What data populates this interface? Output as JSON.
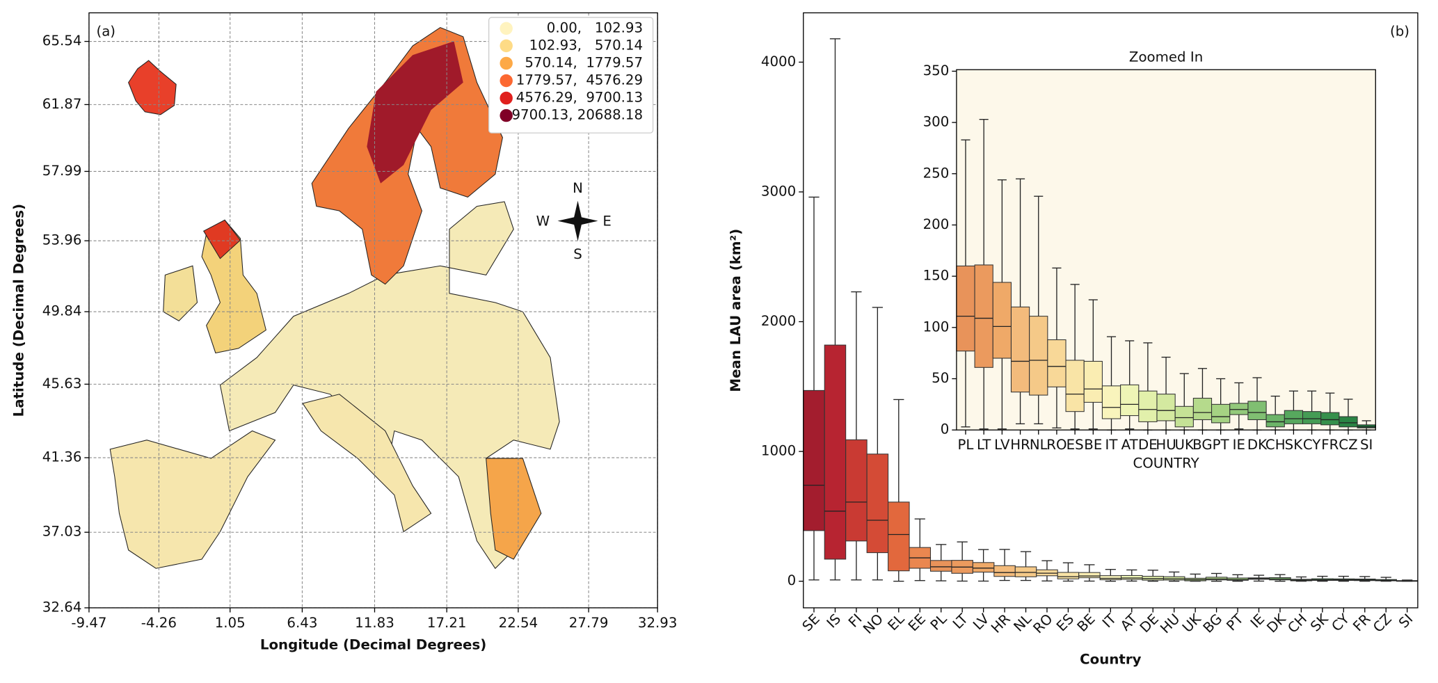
{
  "chart_data": [
    {
      "type": "map",
      "annotation": "(a)",
      "xlabel": "Longitude (Decimal Degrees)",
      "ylabel": "Latitude (Decimal Degrees)",
      "xlim": [
        -9.47,
        32.93
      ],
      "xticks": [
        -9.47,
        -4.26,
        1.05,
        6.43,
        11.83,
        17.21,
        22.54,
        27.79,
        32.93
      ],
      "ylim": [
        32.64,
        67.2
      ],
      "yticks": [
        32.64,
        37.03,
        41.36,
        45.63,
        49.84,
        53.96,
        57.99,
        61.87,
        65.54
      ],
      "grid": true,
      "legend_position": "upper right",
      "legend": {
        "labels": [
          "0.00,   102.93",
          "102.93,   570.14",
          "570.14,  1779.57",
          "1779.57,  4576.29",
          "4576.29,  9700.13",
          "9700.13, 20688.18"
        ],
        "colors": [
          "#fff3bf",
          "#fedb86",
          "#fda946",
          "#fc6831",
          "#e0201d",
          "#800026"
        ]
      },
      "compass": {
        "north": "N",
        "south": "S",
        "west": "W",
        "east": "E"
      }
    },
    {
      "type": "box",
      "annotation": "(b)",
      "xlabel": "Country",
      "ylabel": "Mean LAU area (km²)",
      "categories": [
        "SE",
        "IS",
        "FI",
        "NO",
        "EL",
        "EE",
        "PL",
        "LT",
        "LV",
        "HR",
        "NL",
        "RO",
        "ES",
        "BE",
        "IT",
        "AT",
        "DE",
        "HU",
        "UK",
        "BG",
        "PT",
        "IE",
        "DK",
        "CH",
        "SK",
        "CY",
        "FR",
        "CZ",
        "SI"
      ],
      "colors": [
        "#a31d2e",
        "#b72431",
        "#c93a33",
        "#d44b36",
        "#e2683d",
        "#ea8750",
        "#e8935a",
        "#eb9a5e",
        "#efa968",
        "#f3bb7c",
        "#f5c988",
        "#f8d898",
        "#f9e4a6",
        "#faedb2",
        "#f9f4bc",
        "#eef5b6",
        "#e2f0ab",
        "#d4e9a0",
        "#c5e296",
        "#b5da8c",
        "#a5d283",
        "#93c97b",
        "#80bf72",
        "#6cb468",
        "#57a85e",
        "#459c55",
        "#36904c",
        "#2a8444",
        "#1d773c"
      ],
      "whisker_low": [
        10,
        10,
        10,
        10,
        0,
        5,
        3,
        1,
        1,
        6,
        6,
        2,
        1,
        1,
        0,
        1,
        0,
        0,
        0,
        0,
        0,
        1,
        0,
        0,
        0,
        0,
        0,
        0,
        0
      ],
      "q1": [
        390,
        170,
        310,
        220,
        80,
        100,
        77,
        61,
        70,
        37,
        34,
        42,
        18,
        27,
        11,
        14,
        8,
        9,
        3,
        10,
        7,
        15,
        10,
        3,
        6,
        6,
        5,
        3,
        2
      ],
      "median": [
        740,
        540,
        610,
        470,
        360,
        180,
        111,
        109,
        101,
        67,
        68,
        62,
        35,
        40,
        22,
        25,
        20,
        19,
        12,
        17,
        13,
        20,
        17,
        8,
        11,
        11,
        10,
        7,
        3
      ],
      "q3": [
        1470,
        1820,
        1090,
        980,
        610,
        260,
        160,
        161,
        144,
        120,
        111,
        88,
        68,
        67,
        43,
        44,
        38,
        35,
        23,
        31,
        25,
        26,
        28,
        15,
        19,
        18,
        17,
        13,
        5
      ],
      "whisker_high": [
        2960,
        4180,
        2230,
        2110,
        1400,
        480,
        283,
        303,
        244,
        245,
        228,
        158,
        142,
        127,
        91,
        87,
        85,
        71,
        55,
        60,
        50,
        46,
        51,
        33,
        38,
        38,
        36,
        30,
        9
      ],
      "ylim": [
        -205,
        4380
      ],
      "yticks": [
        0,
        1000,
        2000,
        3000,
        4000
      ]
    },
    {
      "type": "box",
      "title": "Zoomed In",
      "xlabel": "COUNTRY",
      "background": "#fdf8ea",
      "categories": [
        "PL",
        "LT",
        "LV",
        "HR",
        "NL",
        "RO",
        "ES",
        "BE",
        "IT",
        "AT",
        "DE",
        "HU",
        "UK",
        "BG",
        "PT",
        "IE",
        "DK",
        "CH",
        "SK",
        "CY",
        "FR",
        "CZ",
        "SI"
      ],
      "colors": [
        "#e8935a",
        "#eb9a5e",
        "#efa968",
        "#f3bb7c",
        "#f5c988",
        "#f8d898",
        "#f9e4a6",
        "#faedb2",
        "#f9f4bc",
        "#eef5b6",
        "#e2f0ab",
        "#d4e9a0",
        "#c5e296",
        "#b5da8c",
        "#a5d283",
        "#93c97b",
        "#80bf72",
        "#6cb468",
        "#57a85e",
        "#459c55",
        "#36904c",
        "#2a8444",
        "#1d773c"
      ],
      "whisker_low": [
        3,
        1,
        1,
        6,
        6,
        2,
        1,
        1,
        0,
        1,
        0,
        0,
        0,
        0,
        0,
        1,
        0,
        0,
        0,
        0,
        0,
        0,
        0
      ],
      "q1": [
        77,
        61,
        70,
        37,
        34,
        42,
        18,
        27,
        11,
        14,
        8,
        9,
        3,
        10,
        7,
        15,
        10,
        3,
        6,
        6,
        5,
        3,
        2
      ],
      "median": [
        111,
        109,
        101,
        67,
        68,
        62,
        35,
        40,
        22,
        25,
        20,
        19,
        12,
        17,
        13,
        20,
        17,
        8,
        11,
        11,
        10,
        7,
        3
      ],
      "q3": [
        160,
        161,
        144,
        120,
        111,
        88,
        68,
        67,
        43,
        44,
        38,
        35,
        23,
        31,
        25,
        26,
        28,
        15,
        19,
        18,
        17,
        13,
        5
      ],
      "whisker_high": [
        283,
        303,
        244,
        245,
        228,
        158,
        142,
        127,
        91,
        87,
        85,
        71,
        55,
        60,
        50,
        46,
        51,
        33,
        38,
        38,
        36,
        30,
        9
      ],
      "ylim": [
        0,
        351.5
      ],
      "yticks": [
        0,
        50,
        100,
        150,
        200,
        250,
        300,
        350
      ]
    }
  ]
}
